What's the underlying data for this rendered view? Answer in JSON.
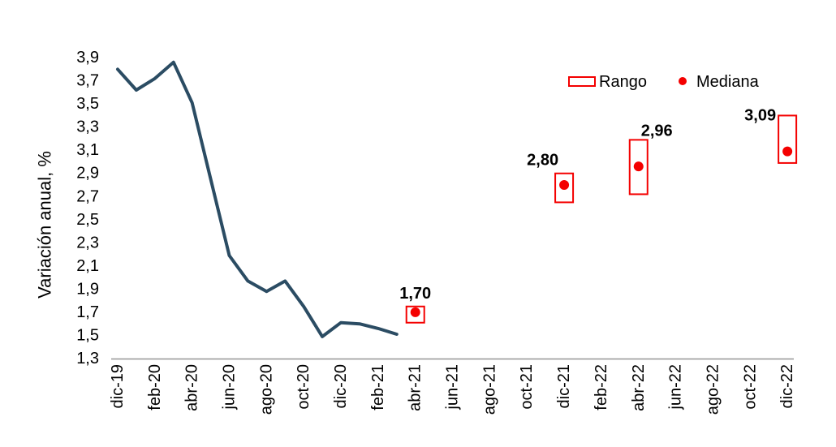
{
  "chart_data": {
    "type": "line",
    "title": "",
    "ylabel": "Variación anual, %",
    "y_axis": {
      "min": 1.3,
      "max": 3.9,
      "step": 0.2,
      "tick_labels": [
        "3,9",
        "3,7",
        "3,5",
        "3,3",
        "3,1",
        "2,9",
        "2,7",
        "2,5",
        "2,3",
        "2,1",
        "1,9",
        "1,7",
        "1,5",
        "1,3"
      ]
    },
    "x_tick_labels": [
      "dic-19",
      "feb-20",
      "abr-20",
      "jun-20",
      "ago-20",
      "oct-20",
      "dic-20",
      "feb-21",
      "abr-21",
      "jun-21",
      "ago-21",
      "oct-21",
      "dic-21",
      "feb-22",
      "abr-22",
      "jun-22",
      "ago-22",
      "oct-22",
      "dic-22"
    ],
    "line_series": {
      "months": [
        "dic-19",
        "ene-20",
        "feb-20",
        "mar-20",
        "abr-20",
        "may-20",
        "jun-20",
        "jul-20",
        "ago-20",
        "sep-20",
        "oct-20",
        "nov-20",
        "dic-20",
        "ene-21",
        "feb-21",
        "mar-21"
      ],
      "values": [
        3.8,
        3.62,
        3.72,
        3.86,
        3.51,
        2.85,
        2.19,
        1.97,
        1.88,
        1.97,
        1.75,
        1.49,
        1.61,
        1.6,
        1.56,
        1.51
      ]
    },
    "forecasts": [
      {
        "month": "abr-21",
        "label": "1,70",
        "median": 1.7,
        "range_low": 1.61,
        "range_high": 1.75
      },
      {
        "month": "dic-21",
        "label": "2,80",
        "median": 2.8,
        "range_low": 2.65,
        "range_high": 2.9
      },
      {
        "month": "abr-22",
        "label": "2,96",
        "median": 2.96,
        "range_low": 2.72,
        "range_high": 3.19
      },
      {
        "month": "dic-22",
        "label": "3,09",
        "median": 3.09,
        "range_low": 2.99,
        "range_high": 3.4
      }
    ],
    "legend": [
      {
        "symbol": "range-box",
        "label": "Rango"
      },
      {
        "symbol": "median-dot",
        "label": "Mediana"
      }
    ],
    "colors": {
      "line": "#2B4C63",
      "red": "#F40000",
      "axis": "#969696",
      "text": "#000000"
    },
    "legend_position": "top-right",
    "grid": "off"
  }
}
